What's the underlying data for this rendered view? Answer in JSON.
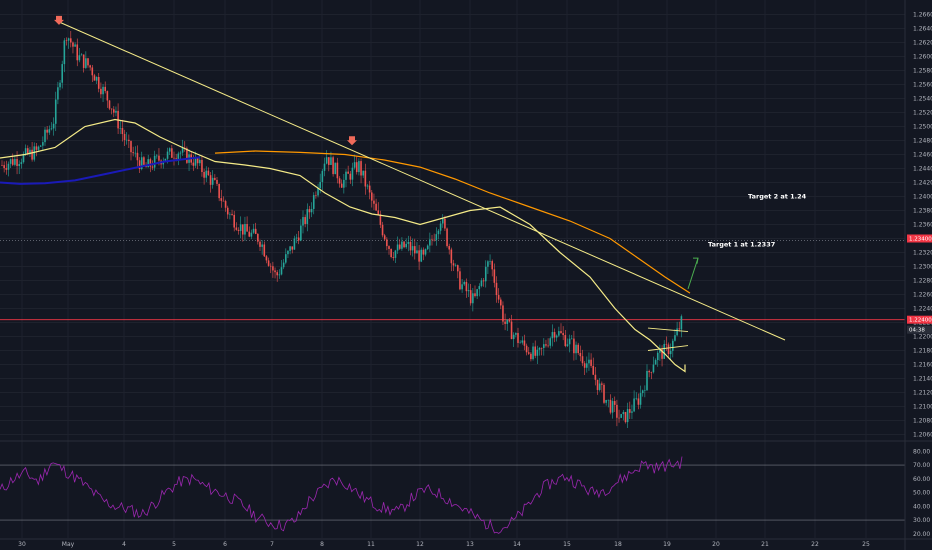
{
  "chart_data": [
    {
      "type": "candlestick",
      "title": "",
      "xlabel": "",
      "ylabel": "",
      "x_ticks": [
        "30",
        "May",
        "4",
        "5",
        "6",
        "7",
        "8",
        "11",
        "12",
        "13",
        "14",
        "15",
        "18",
        "19",
        "20",
        "21",
        "22",
        "25"
      ],
      "y_ticks": [
        "1.26600",
        "1.26400",
        "1.26200",
        "1.26000",
        "1.25800",
        "1.25600",
        "1.25400",
        "1.25200",
        "1.25000",
        "1.24800",
        "1.24600",
        "1.24400",
        "1.24200",
        "1.24000",
        "1.23800",
        "1.23600",
        "1.23400",
        "1.23200",
        "1.23000",
        "1.22800",
        "1.22600",
        "1.22400",
        "1.22200",
        "1.22000",
        "1.21800",
        "1.21600",
        "1.21400",
        "1.21200",
        "1.21000",
        "1.20800",
        "1.20600"
      ],
      "ylim": [
        1.2055,
        1.2675
      ],
      "price_path": [
        {
          "x": "30",
          "close": 1.2445
        },
        {
          "x": "30",
          "close": 1.2465
        },
        {
          "x": "May",
          "close": 1.251
        },
        {
          "x": "May",
          "close": 1.2635
        },
        {
          "x": "May",
          "close": 1.26
        },
        {
          "x": "May",
          "close": 1.2585
        },
        {
          "x": "4",
          "close": 1.253
        },
        {
          "x": "4",
          "close": 1.247
        },
        {
          "x": "4",
          "close": 1.244
        },
        {
          "x": "5",
          "close": 1.2455
        },
        {
          "x": "5",
          "close": 1.2465
        },
        {
          "x": "5",
          "close": 1.245
        },
        {
          "x": "6",
          "close": 1.242
        },
        {
          "x": "6",
          "close": 1.2375
        },
        {
          "x": "6",
          "close": 1.235
        },
        {
          "x": "7",
          "close": 1.234
        },
        {
          "x": "7",
          "close": 1.2285
        },
        {
          "x": "7",
          "close": 1.233
        },
        {
          "x": "8",
          "close": 1.238
        },
        {
          "x": "8",
          "close": 1.246
        },
        {
          "x": "8",
          "close": 1.242
        },
        {
          "x": "11",
          "close": 1.2445
        },
        {
          "x": "11",
          "close": 1.238
        },
        {
          "x": "11",
          "close": 1.232
        },
        {
          "x": "12",
          "close": 1.233
        },
        {
          "x": "12",
          "close": 1.231
        },
        {
          "x": "12",
          "close": 1.237
        },
        {
          "x": "13",
          "close": 1.228
        },
        {
          "x": "13",
          "close": 1.225
        },
        {
          "x": "13",
          "close": 1.231
        },
        {
          "x": "14",
          "close": 1.222
        },
        {
          "x": "14",
          "close": 1.219
        },
        {
          "x": "14",
          "close": 1.217
        },
        {
          "x": "15",
          "close": 1.221
        },
        {
          "x": "15",
          "close": 1.219
        },
        {
          "x": "15",
          "close": 1.216
        },
        {
          "x": "18",
          "close": 1.211
        },
        {
          "x": "18",
          "close": 1.208
        },
        {
          "x": "18",
          "close": 1.211
        },
        {
          "x": "19",
          "close": 1.217
        },
        {
          "x": "19",
          "close": 1.2185
        },
        {
          "x": "19",
          "close": 1.224
        }
      ],
      "series": [
        {
          "name": "",
          "color": "#f5eb88",
          "points": [
            1.2455,
            1.246,
            1.247,
            1.25,
            1.251,
            1.2505,
            1.2485,
            1.2465,
            1.245,
            1.2445,
            1.244,
            1.243,
            1.2405,
            1.2385,
            1.2375,
            1.237,
            1.236,
            1.237,
            1.238,
            1.2385,
            1.236,
            1.232,
            1.2285,
            1.224,
            1.221,
            1.2195,
            1.2175,
            1.216,
            1.215,
            1.216
          ]
        },
        {
          "name": "",
          "color": "#ff9800",
          "points": [
            1.2462,
            1.2465,
            1.2463,
            1.246,
            1.2452,
            1.2442,
            1.2425,
            1.2405,
            1.2385,
            1.2365,
            1.234,
            1.231,
            1.2285,
            1.2262
          ]
        },
        {
          "name": "",
          "color": "#1a1ab8",
          "points": [
            1.242,
            1.2418,
            1.2419,
            1.2423,
            1.2432,
            1.2441,
            1.245,
            1.2456
          ]
        }
      ],
      "annotations": [
        {
          "text": "Target 2 at 1.24",
          "y": 1.24
        },
        {
          "text": "Target 1 at 1.2337",
          "y": 1.2337
        }
      ],
      "horizontal_lines": [
        {
          "y": 1.2337,
          "color": "#787b86",
          "style": "dotted"
        },
        {
          "y": 1.2224,
          "color": "#f23645",
          "style": "solid"
        }
      ],
      "trendline": {
        "color": "#f5eb88",
        "from": {
          "x": "May",
          "y": 1.265
        },
        "to": {
          "x": "21",
          "y": 1.2195
        }
      },
      "price_badges": [
        {
          "text": "1.23400",
          "color": "#f23645"
        },
        {
          "text": "1.22400",
          "color": "#f23645"
        },
        {
          "text": "04:38",
          "color": "#2a2e39"
        }
      ],
      "colors": {
        "up": "#26a69a",
        "down": "#ef5350",
        "background": "#131722",
        "grid": "#1e222d"
      }
    },
    {
      "type": "line",
      "title": "",
      "xlabel": "",
      "ylabel": "",
      "y_ticks": [
        "80.00",
        "70.00",
        "60.00",
        "50.00",
        "40.00",
        "30.00",
        "20.00"
      ],
      "ylim": [
        17,
        86
      ],
      "levels": [
        70,
        30
      ],
      "series": [
        {
          "name": "",
          "color": "#9c27b0",
          "values": [
            51,
            60,
            64,
            58,
            72,
            66,
            60,
            52,
            44,
            40,
            38,
            34,
            42,
            51,
            58,
            60,
            54,
            50,
            46,
            40,
            32,
            28,
            26,
            30,
            44,
            52,
            60,
            56,
            48,
            42,
            38,
            36,
            46,
            52,
            50,
            44,
            38,
            32,
            26,
            24,
            30,
            40,
            52,
            58,
            62,
            56,
            50,
            52,
            58,
            64,
            71,
            68,
            70,
            72
          ]
        }
      ]
    }
  ]
}
